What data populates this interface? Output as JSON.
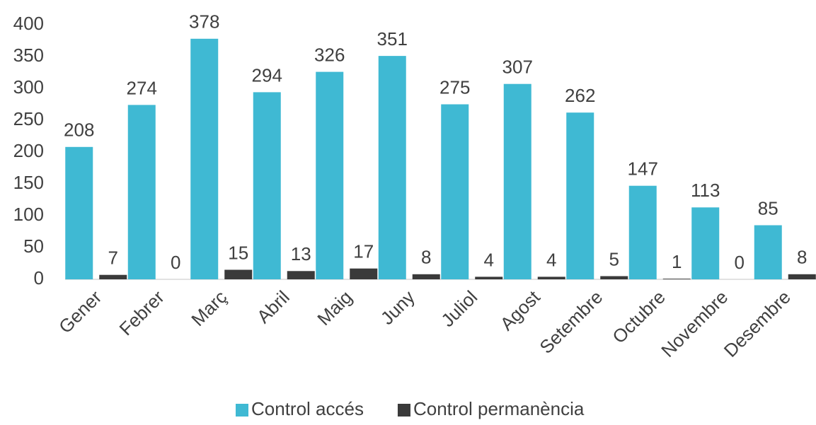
{
  "chart_data": {
    "type": "bar",
    "categories": [
      "Gener",
      "Febrer",
      "Març",
      "Abril",
      "Maig",
      "Juny",
      "Juliol",
      "Agost",
      "Setembre",
      "Octubre",
      "Novembre",
      "Desembre"
    ],
    "series": [
      {
        "name": "Control accés",
        "color": "#3fb9d3",
        "values": [
          208,
          274,
          378,
          294,
          326,
          351,
          275,
          307,
          262,
          147,
          113,
          85
        ]
      },
      {
        "name": "Control permanència",
        "color": "#3a3a3a",
        "values": [
          7,
          0,
          15,
          13,
          17,
          8,
          4,
          4,
          5,
          1,
          0,
          8
        ]
      }
    ],
    "ylim": [
      0,
      400
    ],
    "yticks": [
      0,
      50,
      100,
      150,
      200,
      250,
      300,
      350,
      400
    ],
    "grid": false,
    "legend": "bottom"
  }
}
